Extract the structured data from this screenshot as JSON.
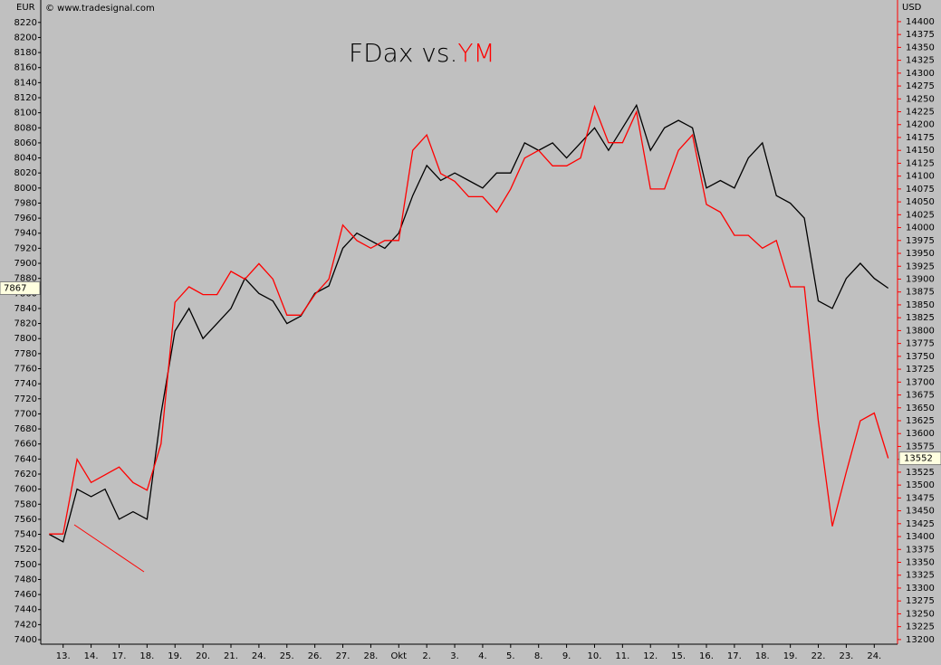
{
  "chart_data": {
    "type": "line",
    "title": {
      "text": "FDax vs.",
      "highlight": "YM"
    },
    "source": "© www.tradesignal.com",
    "y_unit": "EUR",
    "y2_unit": "USD",
    "x": [
      -0.5,
      0,
      0.5,
      1,
      1.5,
      2,
      2.5,
      3,
      3.5,
      4,
      4.5,
      5,
      5.5,
      6,
      6.5,
      7,
      7.5,
      8,
      8.5,
      9,
      9.5,
      10,
      10.5,
      11,
      11.5,
      12,
      12.5,
      13,
      13.5,
      14,
      14.5,
      15,
      15.5,
      16,
      16.5,
      17,
      17.5,
      18,
      18.5,
      19,
      19.5,
      20,
      20.5,
      21,
      21.5,
      22,
      22.5,
      23,
      23.5,
      24,
      24.5,
      25,
      25.5,
      26,
      26.5,
      27,
      27.5,
      28,
      28.5,
      29,
      29.5
    ],
    "xlim": [
      -0.8,
      29.8
    ],
    "xticks": [
      {
        "value": 0,
        "label": "13."
      },
      {
        "value": 1,
        "label": "14."
      },
      {
        "value": 2,
        "label": "17."
      },
      {
        "value": 3,
        "label": "18."
      },
      {
        "value": 4,
        "label": "19."
      },
      {
        "value": 5,
        "label": "20."
      },
      {
        "value": 6,
        "label": "21."
      },
      {
        "value": 7,
        "label": "24."
      },
      {
        "value": 8,
        "label": "25."
      },
      {
        "value": 9,
        "label": "26."
      },
      {
        "value": 10,
        "label": "27."
      },
      {
        "value": 11,
        "label": "28."
      },
      {
        "value": 12,
        "label": "Okt"
      },
      {
        "value": 13,
        "label": "2."
      },
      {
        "value": 14,
        "label": "3."
      },
      {
        "value": 15,
        "label": "4."
      },
      {
        "value": 16,
        "label": "5."
      },
      {
        "value": 17,
        "label": "8."
      },
      {
        "value": 18,
        "label": "9."
      },
      {
        "value": 19,
        "label": "10."
      },
      {
        "value": 20,
        "label": "11."
      },
      {
        "value": 21,
        "label": "12."
      },
      {
        "value": 22,
        "label": "15."
      },
      {
        "value": 23,
        "label": "16."
      },
      {
        "value": 24,
        "label": "17."
      },
      {
        "value": 25,
        "label": "18."
      },
      {
        "value": 26,
        "label": "19."
      },
      {
        "value": 27,
        "label": "22."
      },
      {
        "value": 28,
        "label": "23."
      },
      {
        "value": 29,
        "label": "24."
      }
    ],
    "ylim": [
      7394,
      8245
    ],
    "yticks": [
      7400,
      7420,
      7440,
      7460,
      7480,
      7500,
      7520,
      7540,
      7560,
      7580,
      7600,
      7620,
      7640,
      7660,
      7680,
      7700,
      7720,
      7740,
      7760,
      7780,
      7800,
      7820,
      7840,
      7860,
      7880,
      7900,
      7920,
      7940,
      7960,
      7980,
      8000,
      8020,
      8040,
      8060,
      8080,
      8100,
      8120,
      8140,
      8160,
      8180,
      8200,
      8220
    ],
    "y2lim": [
      13191,
      14435
    ],
    "y2ticks": [
      13200,
      13225,
      13250,
      13275,
      13300,
      13325,
      13350,
      13375,
      13400,
      13425,
      13450,
      13475,
      13500,
      13525,
      13550,
      13575,
      13600,
      13625,
      13650,
      13675,
      13700,
      13725,
      13750,
      13775,
      13800,
      13825,
      13850,
      13875,
      13900,
      13925,
      13950,
      13975,
      14000,
      14025,
      14050,
      14075,
      14100,
      14125,
      14150,
      14175,
      14200,
      14225,
      14250,
      14275,
      14300,
      14325,
      14350,
      14375,
      14400
    ],
    "series": [
      {
        "color": "#000000",
        "values": [
          7540,
          7530,
          7600,
          7590,
          7600,
          7560,
          7570,
          7560,
          7700,
          7810,
          7840,
          7800,
          7820,
          7840,
          7880,
          7860,
          7850,
          7820,
          7830,
          7860,
          7870,
          7920,
          7940,
          7930,
          7920,
          7940,
          7990,
          8030,
          8010,
          8020,
          8010,
          8000,
          8020,
          8020,
          8060,
          8050,
          8060,
          8040,
          8060,
          8080,
          8050,
          8080,
          8110,
          8050,
          8080,
          8090,
          8080,
          8000,
          8010,
          8000,
          8040,
          8060,
          7990,
          7980,
          7960,
          7850,
          7840,
          7880,
          7900,
          7880,
          7867
        ]
      },
      {
        "color": "#ff0000",
        "axis": "y2",
        "values": [
          13405,
          13405,
          13550,
          13505,
          13520,
          13535,
          13505,
          13490,
          13580,
          13855,
          13885,
          13870,
          13870,
          13915,
          13900,
          13930,
          13900,
          13830,
          13830,
          13870,
          13900,
          14005,
          13975,
          13960,
          13975,
          13975,
          14150,
          14180,
          14105,
          14090,
          14060,
          14060,
          14030,
          14075,
          14135,
          14150,
          14120,
          14120,
          14135,
          14235,
          14165,
          14165,
          14225,
          14075,
          14075,
          14150,
          14180,
          14045,
          14030,
          13985,
          13985,
          13960,
          13975,
          13885,
          13885,
          13625,
          13420,
          13525,
          13625,
          13640,
          13552
        ]
      }
    ]
  }
}
